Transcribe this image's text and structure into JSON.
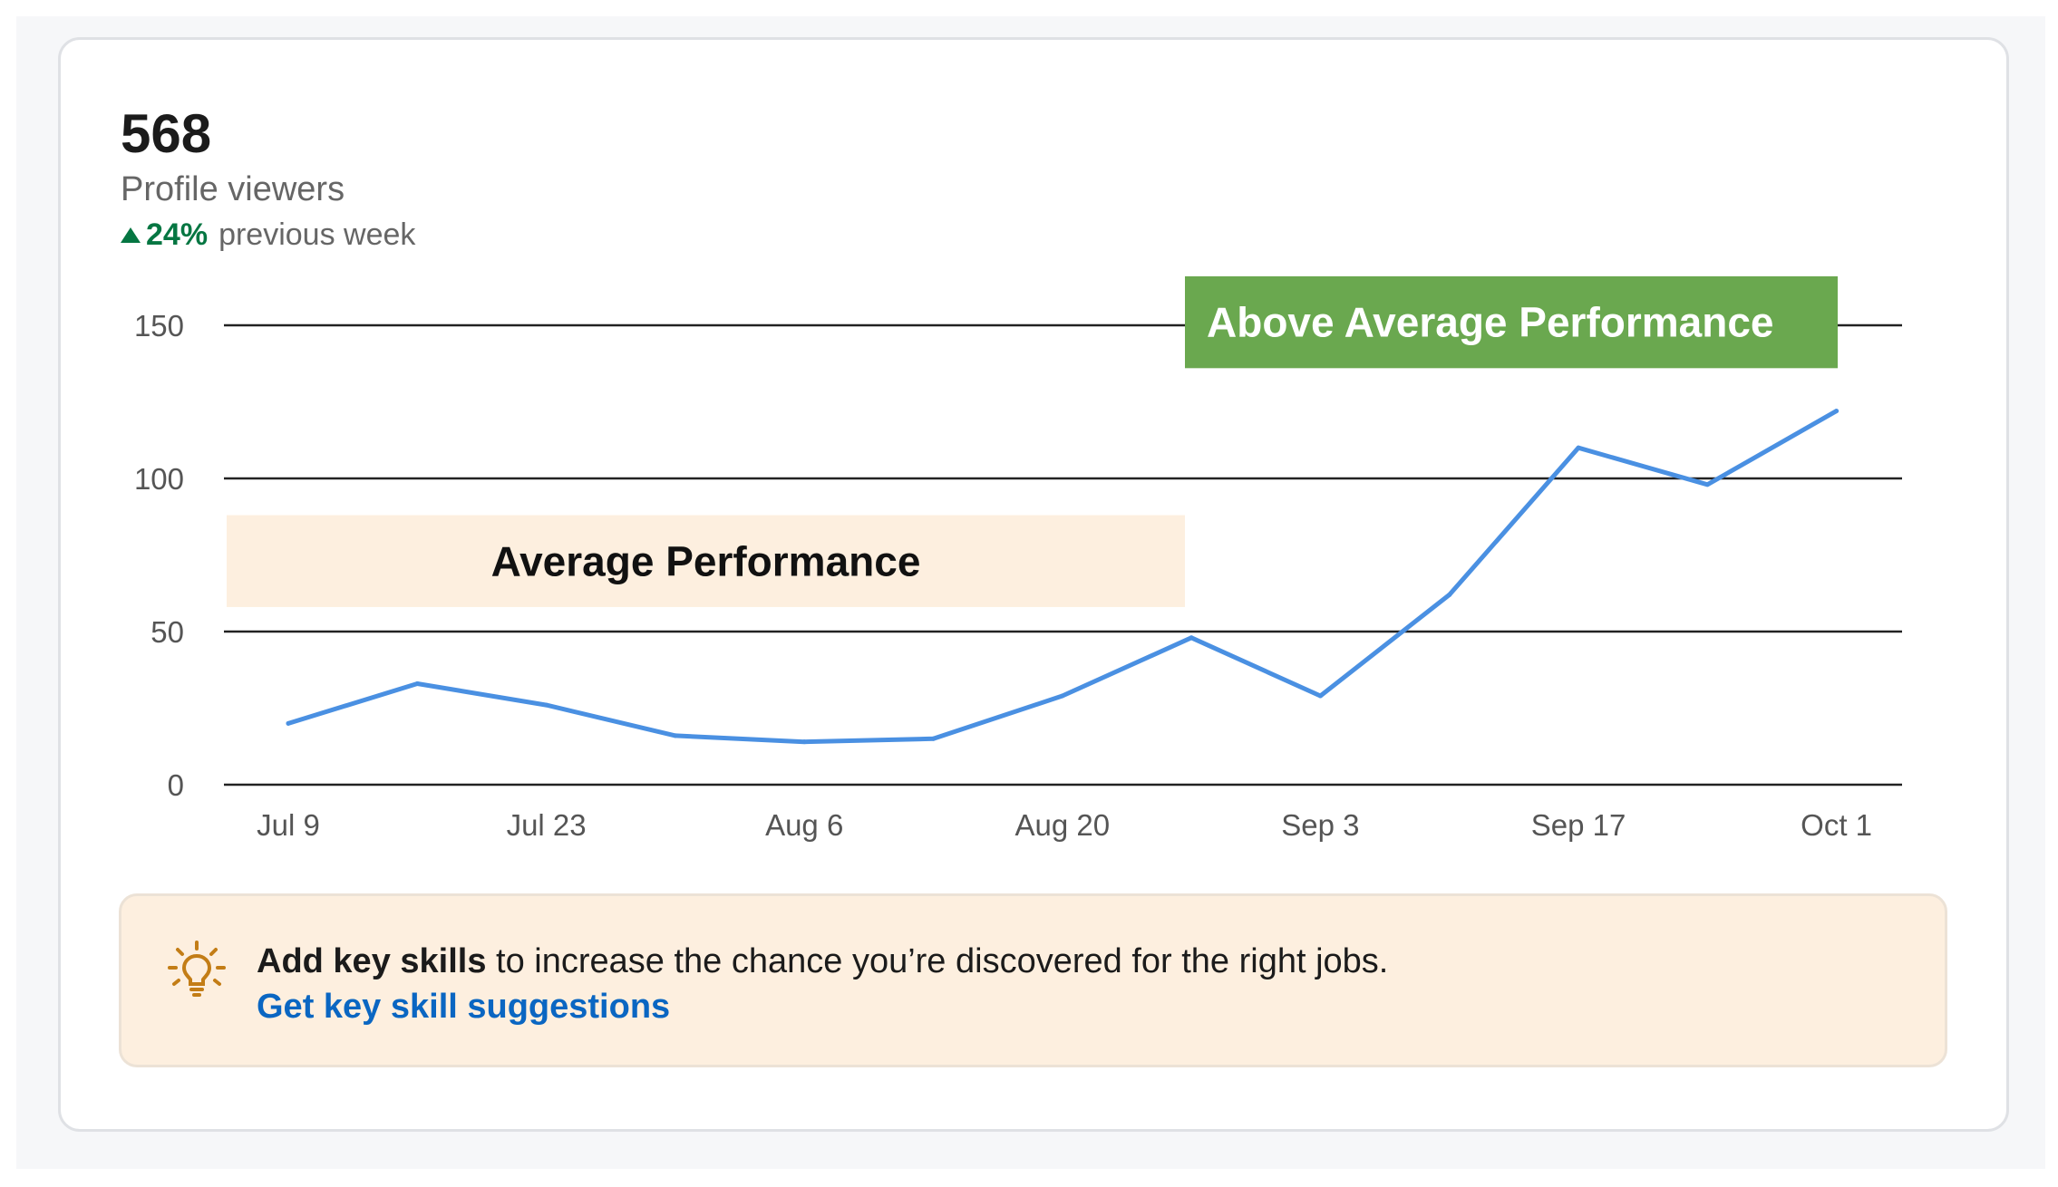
{
  "metric": {
    "value": "568",
    "label": "Profile viewers",
    "change": "24%",
    "change_context": "previous week"
  },
  "chart_data": {
    "type": "line",
    "y_ticks": [
      "0",
      "50",
      "100",
      "150"
    ],
    "ylim": [
      0,
      150
    ],
    "x_tick_labels": [
      "Jul 9",
      "Jul 23",
      "Aug 6",
      "Aug 20",
      "Sep 3",
      "Sep 17",
      "Oct 1"
    ],
    "x": [
      "Jul 9",
      "Jul 16",
      "Jul 23",
      "Jul 30",
      "Aug 6",
      "Aug 13",
      "Aug 20",
      "Aug 27",
      "Sep 3",
      "Sep 10",
      "Sep 17",
      "Sep 24",
      "Oct 1"
    ],
    "series": [
      {
        "values": [
          20,
          33,
          26,
          16,
          14,
          15,
          29,
          48,
          29,
          62,
          110,
          98,
          122
        ]
      }
    ],
    "grid": true,
    "bands": [
      {
        "label": "Average Performance",
        "y_from": 58,
        "y_to": 88,
        "x_from": "Jul 7",
        "x_to": "Aug 27",
        "fill": "#fdefdf",
        "text_color": "#111111"
      },
      {
        "label": "Above Average Performance",
        "y_from": 136,
        "y_to": 166,
        "x_from": "Aug 27",
        "x_to": "Oct 1",
        "fill": "#6aa84f",
        "text_color": "#ffffff"
      }
    ],
    "line_color": "#4a90e2"
  },
  "suggestion": {
    "icon": "lightbulb-icon",
    "strong_text": "Add key skills",
    "text": " to increase the chance you’re discovered for the right jobs.",
    "link_text": "Get key skill suggestions"
  },
  "colors": {
    "positive": "#057642",
    "link": "#0a66c2",
    "icon": "#c37d16"
  }
}
